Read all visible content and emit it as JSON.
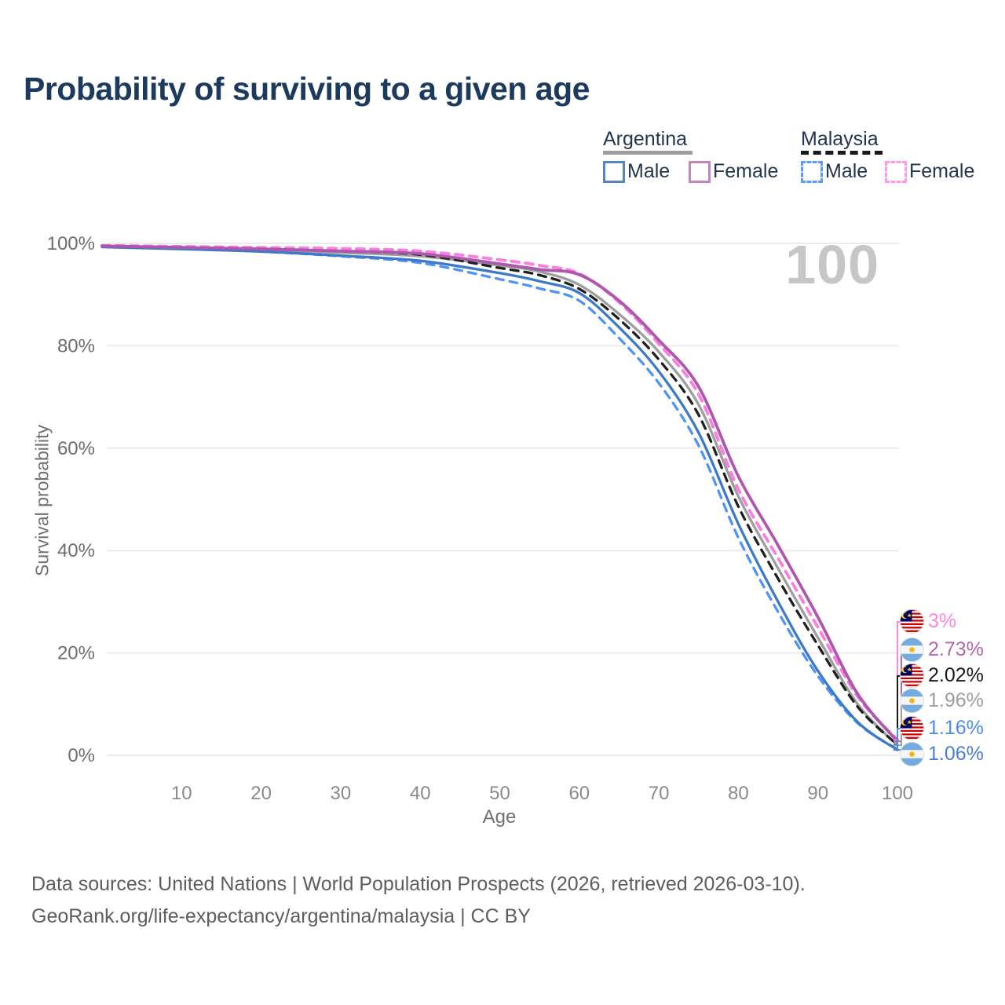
{
  "title": "Probability of surviving to a given age",
  "legend": {
    "groups": [
      {
        "name": "Argentina",
        "line_style": "solid",
        "rule_color": "#9e9e9e",
        "items": [
          {
            "label": "Male",
            "color": "#5585c5"
          },
          {
            "label": "Female",
            "color": "#c184bd"
          }
        ]
      },
      {
        "name": "Malaysia",
        "line_style": "dashed",
        "rule_color": "#1a1a1a",
        "items": [
          {
            "label": "Male",
            "color": "#5b9bff"
          },
          {
            "label": "Female",
            "color": "#ff9ae5"
          }
        ]
      }
    ]
  },
  "chart_data": {
    "type": "line",
    "title": "Probability of surviving to a given age",
    "xlabel": "Age",
    "ylabel": "Survival probability",
    "xlim": [
      0,
      100
    ],
    "ylim": [
      0,
      100
    ],
    "grid": "horizontal",
    "legend_position": "top-right",
    "x_ticks": [
      10,
      20,
      30,
      40,
      50,
      60,
      70,
      80,
      90,
      100
    ],
    "y_ticks": [
      0,
      20,
      40,
      60,
      80,
      100
    ],
    "y_tick_suffix": "%",
    "age_marker": "100",
    "x": [
      0,
      10,
      20,
      30,
      40,
      50,
      55,
      60,
      65,
      70,
      75,
      80,
      85,
      90,
      95,
      100
    ],
    "series": [
      {
        "name": "Argentina — Both sexes",
        "country": "Argentina",
        "group": "Both sexes",
        "style": "solid",
        "color": "#9e9e9e",
        "values": [
          99.4,
          99.1,
          98.7,
          98.2,
          97.5,
          95.7,
          94.5,
          91.9,
          86.2,
          78.8,
          68.5,
          50.6,
          36.5,
          23.0,
          10.0,
          1.96
        ]
      },
      {
        "name": "Malaysia — Both sexes",
        "country": "Malaysia",
        "group": "Both sexes",
        "style": "dashed",
        "color": "#1f1f1f",
        "values": [
          99.5,
          99.2,
          98.9,
          98.5,
          97.8,
          95.2,
          93.8,
          91.1,
          85.2,
          77.3,
          66.5,
          48.6,
          34.5,
          21.5,
          9.5,
          2.02
        ]
      },
      {
        "name": "Malaysia — Male",
        "country": "Malaysia",
        "group": "Male",
        "style": "dashed",
        "color": "#4e94f6",
        "values": [
          99.4,
          99.0,
          98.4,
          97.5,
          96.2,
          93.0,
          91.2,
          88.8,
          81.5,
          72.7,
          60.5,
          42.5,
          28.0,
          15.5,
          6.3,
          1.16
        ]
      },
      {
        "name": "Argentina — Male",
        "country": "Argentina",
        "group": "Male",
        "style": "solid",
        "color": "#3e78c9",
        "values": [
          99.3,
          98.9,
          98.4,
          97.6,
          96.6,
          94.2,
          92.6,
          90.3,
          83.6,
          75.0,
          63.0,
          45.2,
          30.0,
          16.5,
          6.5,
          1.06
        ]
      },
      {
        "name": "Malaysia — Female",
        "country": "Malaysia",
        "group": "Female",
        "style": "dashed",
        "color": "#fc7ce0",
        "values": [
          99.6,
          99.4,
          99.2,
          99.0,
          98.5,
          96.8,
          95.7,
          94.1,
          88.5,
          80.4,
          70.5,
          52.0,
          38.5,
          25.0,
          11.5,
          3.0
        ]
      },
      {
        "name": "Argentina — Female",
        "country": "Argentina",
        "group": "Female",
        "style": "solid",
        "color": "#ad58ac",
        "values": [
          99.5,
          99.2,
          98.9,
          98.5,
          98.0,
          96.0,
          94.9,
          93.9,
          88.8,
          81.1,
          72.0,
          54.5,
          41.0,
          27.0,
          12.0,
          2.73
        ]
      }
    ],
    "endpoints": [
      {
        "flag": "malaysia",
        "label": "3%",
        "value": 3.0,
        "color": "#ff85e0",
        "series": "Malaysia — Female"
      },
      {
        "flag": "argentina",
        "label": "2.73%",
        "value": 2.73,
        "color": "#b168ae",
        "series": "Argentina — Female"
      },
      {
        "flag": "malaysia",
        "label": "2.02%",
        "value": 2.02,
        "color": "#1a1a1a",
        "series": "Malaysia — Both sexes"
      },
      {
        "flag": "argentina",
        "label": "1.96%",
        "value": 1.96,
        "color": "#9e9e9e",
        "series": "Argentina — Both sexes"
      },
      {
        "flag": "malaysia",
        "label": "1.16%",
        "value": 1.16,
        "color": "#4b8df0",
        "series": "Malaysia — Male"
      },
      {
        "flag": "argentina",
        "label": "1.06%",
        "value": 1.06,
        "color": "#4a7fd4",
        "series": "Argentina — Male"
      }
    ]
  },
  "footer": {
    "line1": "Data sources: United Nations | World Population Prospects (2026, retrieved 2026-03-10).",
    "line2": "GeoRank.org/life-expectancy/argentina/malaysia | CC BY"
  }
}
